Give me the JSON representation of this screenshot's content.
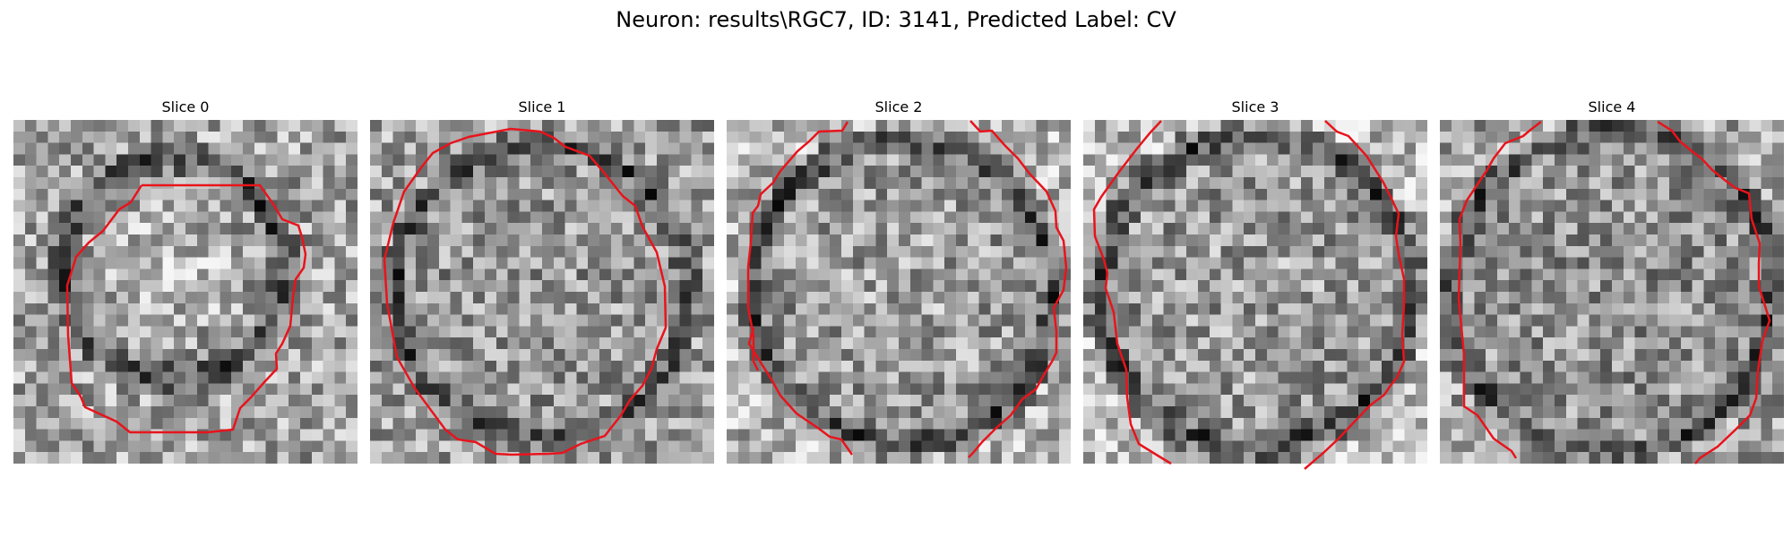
{
  "figure": {
    "title": "Neuron: results\\RGC7, ID: 3141, Predicted Label: CV"
  },
  "panels": [
    {
      "title": "Slice 0"
    },
    {
      "title": "Slice 1"
    },
    {
      "title": "Slice 2"
    },
    {
      "title": "Slice 3"
    },
    {
      "title": "Slice 4"
    }
  ],
  "colors": {
    "contour": "#e8141c",
    "background": "#ffffff"
  },
  "image": {
    "colormap": "grayscale",
    "grid": "30x30"
  }
}
